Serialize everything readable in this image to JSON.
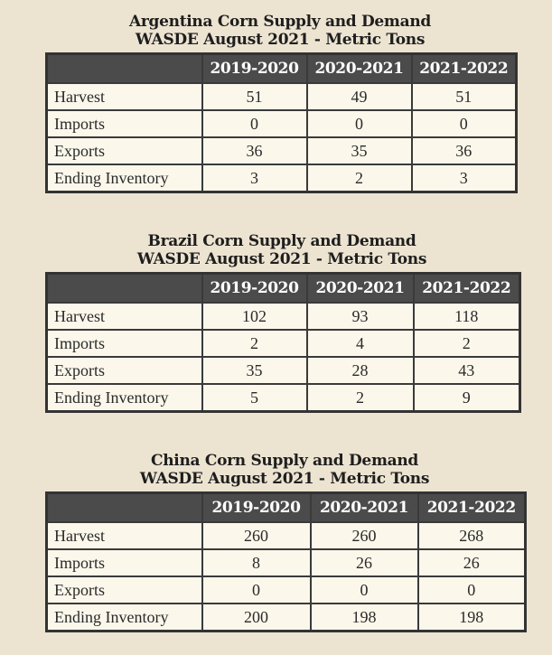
{
  "tables": [
    {
      "title1": "Argentina Corn Supply and Demand",
      "title2": "WASDE August 2021 - Metric Tons",
      "columns": [
        "2019-2020",
        "2020-2021",
        "2021-2022"
      ],
      "rows": [
        {
          "label": "Harvest",
          "values": [
            "51",
            "49",
            "51"
          ]
        },
        {
          "label": "Imports",
          "values": [
            "0",
            "0",
            "0"
          ]
        },
        {
          "label": "Exports",
          "values": [
            "36",
            "35",
            "36"
          ]
        },
        {
          "label": "Ending Inventory",
          "values": [
            "3",
            "2",
            "3"
          ]
        }
      ]
    },
    {
      "title1": "Brazil Corn Supply and Demand",
      "title2": "WASDE August 2021 - Metric Tons",
      "columns": [
        "2019-2020",
        "2020-2021",
        "2021-2022"
      ],
      "rows": [
        {
          "label": "Harvest",
          "values": [
            "102",
            "93",
            "118"
          ]
        },
        {
          "label": "Imports",
          "values": [
            "2",
            "4",
            "2"
          ]
        },
        {
          "label": "Exports",
          "values": [
            "35",
            "28",
            "43"
          ]
        },
        {
          "label": "Ending Inventory",
          "values": [
            "5",
            "2",
            "9"
          ]
        }
      ]
    },
    {
      "title1": "China Corn Supply and Demand",
      "title2": "WASDE August 2021 - Metric Tons",
      "columns": [
        "2019-2020",
        "2020-2021",
        "2021-2022"
      ],
      "rows": [
        {
          "label": "Harvest",
          "values": [
            "260",
            "260",
            "268"
          ]
        },
        {
          "label": "Imports",
          "values": [
            "8",
            "26",
            "26"
          ]
        },
        {
          "label": "Exports",
          "values": [
            "0",
            "0",
            "0"
          ]
        },
        {
          "label": "Ending Inventory",
          "values": [
            "200",
            "198",
            "198"
          ]
        }
      ]
    }
  ]
}
